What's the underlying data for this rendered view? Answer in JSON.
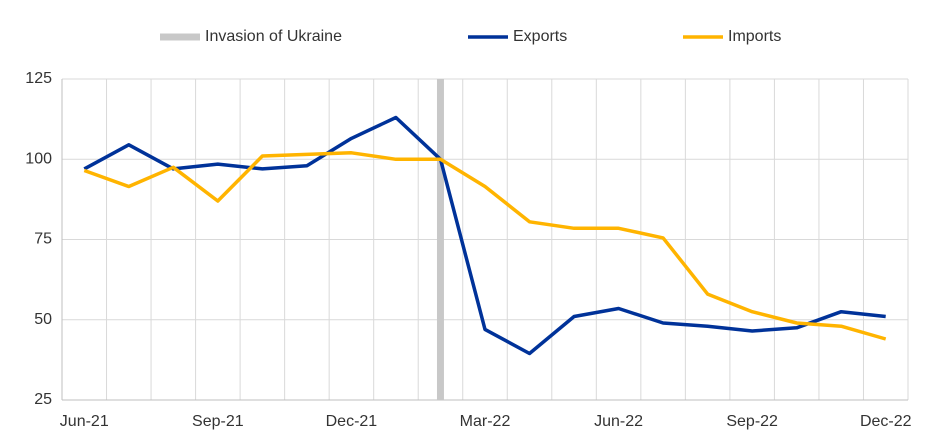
{
  "chart_data": {
    "type": "line",
    "categories": [
      "Jun-21",
      null,
      null,
      "Sep-21",
      null,
      null,
      "Dec-21",
      null,
      null,
      "Mar-22",
      null,
      null,
      "Jun-22",
      null,
      null,
      "Sep-22",
      null,
      null,
      "Dec-22"
    ],
    "series": [
      {
        "name": "Exports",
        "color": "#003299",
        "values": [
          97,
          104.5,
          97,
          98.5,
          97,
          98,
          106.5,
          113,
          100,
          47,
          39.5,
          51,
          53.5,
          49,
          48,
          46.5,
          47.5,
          52.5,
          51
        ]
      },
      {
        "name": "Imports",
        "color": "#ffb400",
        "values": [
          96.5,
          91.5,
          97.5,
          87,
          101,
          101.5,
          102,
          100,
          100,
          91.5,
          80.5,
          78.5,
          78.5,
          75.5,
          58,
          52.5,
          49,
          48,
          44
        ]
      }
    ],
    "vline": {
      "name": "Invasion of Ukraine",
      "color": "#c8c8c8",
      "x": 8
    },
    "ylim": [
      25,
      125
    ],
    "yticks": [
      25,
      50,
      75,
      100,
      125
    ],
    "grid": true
  }
}
